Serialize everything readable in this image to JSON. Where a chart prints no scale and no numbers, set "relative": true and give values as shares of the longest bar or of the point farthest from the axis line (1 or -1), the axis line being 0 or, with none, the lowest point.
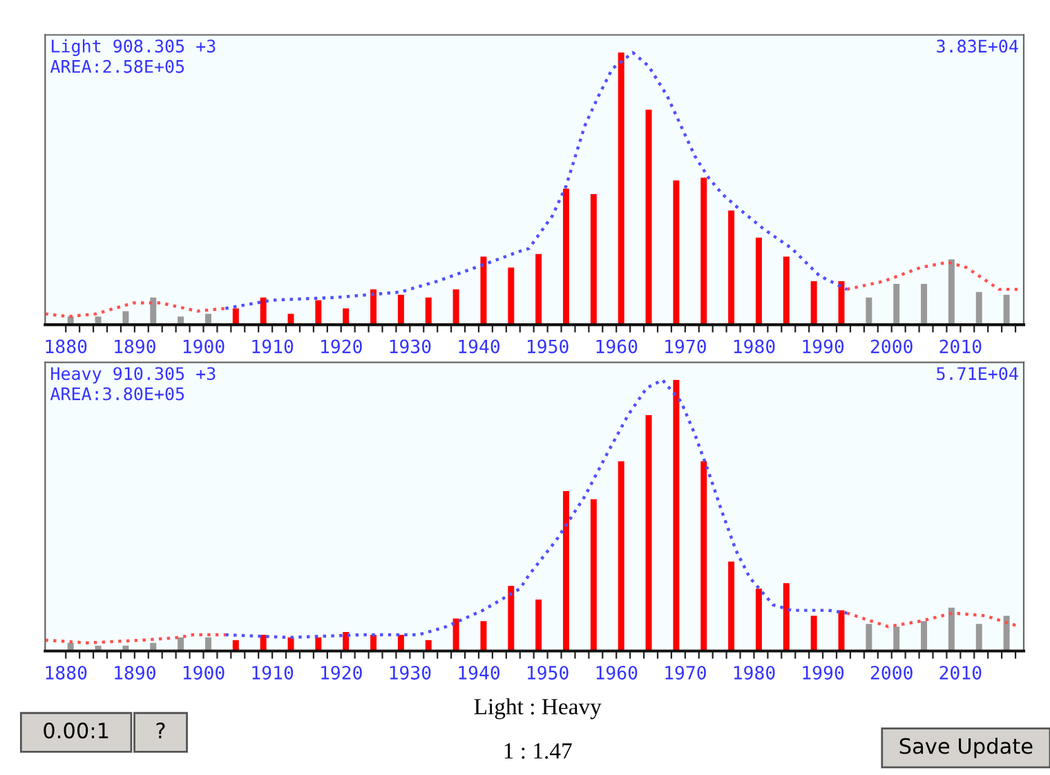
{
  "chart_data": [
    {
      "type": "bar",
      "relative": true,
      "annotations": [
        "Light 908.305 +3",
        "AREA:2.58E+05",
        "3.83E+04"
      ],
      "x": [
        1880.7,
        1884.7,
        1888.7,
        1892.7,
        1896.7,
        1900.7,
        1904.7,
        1908.7,
        1912.7,
        1916.7,
        1920.7,
        1924.7,
        1928.7,
        1932.7,
        1936.7,
        1940.7,
        1944.7,
        1948.7,
        1952.7,
        1956.7,
        1960.7,
        1964.7,
        1968.7,
        1972.7,
        1976.7,
        1980.7,
        1984.7,
        1988.7,
        1992.7,
        1996.7,
        2000.7,
        2004.7,
        2008.7,
        2012.7,
        2016.7
      ],
      "series": [
        {
          "type": "bar",
          "values": [
            0.03,
            0.03,
            0.05,
            0.1,
            0.03,
            0.04,
            0.06,
            0.1,
            0.04,
            0.09,
            0.06,
            0.13,
            0.11,
            0.1,
            0.13,
            0.25,
            0.21,
            0.26,
            0.5,
            0.48,
            1.0,
            0.79,
            0.53,
            0.54,
            0.42,
            0.32,
            0.25,
            0.16,
            0.16,
            0.1,
            0.15,
            0.15,
            0.24,
            0.12,
            0.11
          ],
          "colors": [
            "#999999",
            "#999999",
            "#999999",
            "#999999",
            "#999999",
            "#999999",
            "#ff0000",
            "#ff0000",
            "#ff0000",
            "#ff0000",
            "#ff0000",
            "#ff0000",
            "#ff0000",
            "#ff0000",
            "#ff0000",
            "#ff0000",
            "#ff0000",
            "#ff0000",
            "#ff0000",
            "#ff0000",
            "#ff0000",
            "#ff0000",
            "#ff0000",
            "#ff0000",
            "#ff0000",
            "#ff0000",
            "#ff0000",
            "#ff0000",
            "#ff0000",
            "#999999",
            "#999999",
            "#999999",
            "#999999",
            "#999999",
            "#999999"
          ]
        },
        {
          "type": "line",
          "color": "#ff5050",
          "x": [
            1877.0,
            1880.4,
            1884.4,
            1889.8,
            1893.8,
            1899.1,
            1903.2,
            null,
            1993.5,
            1998.9,
            2004.2,
            2008.2,
            2010.9,
            2015.6,
            2018.6
          ],
          "values": [
            0.04,
            0.03,
            0.04,
            0.08,
            0.08,
            0.05,
            0.06,
            null,
            0.13,
            0.16,
            0.21,
            0.23,
            0.21,
            0.13,
            0.13
          ]
        },
        {
          "type": "line",
          "color": "#5050ff",
          "x": [
            1903.2,
            1909.9,
            1919.2,
            1928.6,
            1934.0,
            1940.6,
            1946.0,
            1947.3,
            1950.7,
            1952.7,
            1955.4,
            1957.4,
            1959.4,
            1962.4,
            1964.7,
            1967.4,
            1969.4,
            1971.4,
            1973.4,
            1975.4,
            1978.1,
            1981.5,
            1985.5,
            1989.5,
            1993.5
          ],
          "values": [
            0.06,
            0.09,
            0.1,
            0.12,
            0.16,
            0.22,
            0.27,
            0.28,
            0.4,
            0.51,
            0.73,
            0.84,
            0.94,
            1.0,
            0.95,
            0.84,
            0.73,
            0.62,
            0.54,
            0.48,
            0.42,
            0.35,
            0.28,
            0.18,
            0.13
          ]
        }
      ],
      "line_style": "dotted",
      "marker": "none",
      "grid": false,
      "legend": false,
      "tick_labels": "x",
      "xlim": [
        1877,
        2019.2
      ],
      "xticks": [
        1880,
        {
          "value": 1882,
          "label": null
        },
        {
          "value": 1884,
          "label": null
        },
        {
          "value": 1886,
          "label": null
        },
        {
          "value": 1888,
          "label": null
        },
        1890,
        {
          "value": 1892,
          "label": null
        },
        {
          "value": 1894,
          "label": null
        },
        {
          "value": 1896,
          "label": null
        },
        {
          "value": 1898,
          "label": null
        },
        1900,
        {
          "value": 1902,
          "label": null
        },
        {
          "value": 1904,
          "label": null
        },
        {
          "value": 1906,
          "label": null
        },
        {
          "value": 1908,
          "label": null
        },
        1910,
        {
          "value": 1912,
          "label": null
        },
        {
          "value": 1914,
          "label": null
        },
        {
          "value": 1916,
          "label": null
        },
        {
          "value": 1918,
          "label": null
        },
        1920,
        {
          "value": 1922,
          "label": null
        },
        {
          "value": 1924,
          "label": null
        },
        {
          "value": 1926,
          "label": null
        },
        {
          "value": 1928,
          "label": null
        },
        1930,
        {
          "value": 1932,
          "label": null
        },
        {
          "value": 1934,
          "label": null
        },
        {
          "value": 1936,
          "label": null
        },
        {
          "value": 1938,
          "label": null
        },
        1940,
        {
          "value": 1942,
          "label": null
        },
        {
          "value": 1944,
          "label": null
        },
        {
          "value": 1946,
          "label": null
        },
        {
          "value": 1948,
          "label": null
        },
        1950,
        {
          "value": 1952,
          "label": null
        },
        {
          "value": 1954,
          "label": null
        },
        {
          "value": 1956,
          "label": null
        },
        {
          "value": 1958,
          "label": null
        },
        1960,
        {
          "value": 1962,
          "label": null
        },
        {
          "value": 1964,
          "label": null
        },
        {
          "value": 1966,
          "label": null
        },
        {
          "value": 1968,
          "label": null
        },
        1970,
        {
          "value": 1972,
          "label": null
        },
        {
          "value": 1974,
          "label": null
        },
        {
          "value": 1976,
          "label": null
        },
        {
          "value": 1978,
          "label": null
        },
        1980,
        {
          "value": 1982,
          "label": null
        },
        {
          "value": 1984,
          "label": null
        },
        {
          "value": 1986,
          "label": null
        },
        {
          "value": 1988,
          "label": null
        },
        1990,
        {
          "value": 1992,
          "label": null
        },
        {
          "value": 1994,
          "label": null
        },
        {
          "value": 1996,
          "label": null
        },
        {
          "value": 1998,
          "label": null
        },
        2000,
        {
          "value": 2002,
          "label": null
        },
        {
          "value": 2004,
          "label": null
        },
        {
          "value": 2006,
          "label": null
        },
        {
          "value": 2008,
          "label": null
        },
        2010,
        {
          "value": 2012,
          "label": null
        },
        {
          "value": 2014,
          "label": null
        },
        {
          "value": 2016,
          "label": null
        },
        {
          "value": 2018,
          "label": null
        }
      ]
    },
    {
      "type": "bar",
      "relative": true,
      "annotations": [
        "Heavy 910.305 +3",
        "AREA:3.80E+05",
        "5.71E+04"
      ],
      "x": [
        1880.7,
        1884.7,
        1888.7,
        1892.7,
        1896.7,
        1900.7,
        1904.7,
        1908.7,
        1912.7,
        1916.7,
        1920.7,
        1924.7,
        1928.7,
        1932.7,
        1936.7,
        1940.7,
        1944.7,
        1948.7,
        1952.7,
        1956.7,
        1960.7,
        1964.7,
        1968.7,
        1972.7,
        1976.7,
        1980.7,
        1984.7,
        1988.7,
        1992.7,
        1996.7,
        2000.7,
        2004.7,
        2008.7,
        2012.7,
        2016.7
      ],
      "series": [
        {
          "type": "bar",
          "values": [
            0.03,
            0.02,
            0.02,
            0.03,
            0.05,
            0.05,
            0.04,
            0.06,
            0.05,
            0.05,
            0.07,
            0.06,
            0.06,
            0.04,
            0.12,
            0.11,
            0.24,
            0.19,
            0.59,
            0.56,
            0.7,
            0.87,
            1.0,
            0.7,
            0.33,
            0.23,
            0.25,
            0.13,
            0.15,
            0.1,
            0.09,
            0.11,
            0.16,
            0.1,
            0.13
          ],
          "colors": [
            "#999999",
            "#999999",
            "#999999",
            "#999999",
            "#999999",
            "#999999",
            "#ff0000",
            "#ff0000",
            "#ff0000",
            "#ff0000",
            "#ff0000",
            "#ff0000",
            "#ff0000",
            "#ff0000",
            "#ff0000",
            "#ff0000",
            "#ff0000",
            "#ff0000",
            "#ff0000",
            "#ff0000",
            "#ff0000",
            "#ff0000",
            "#ff0000",
            "#ff0000",
            "#ff0000",
            "#ff0000",
            "#ff0000",
            "#ff0000",
            "#ff0000",
            "#999999",
            "#999999",
            "#999999",
            "#999999",
            "#999999",
            "#999999"
          ]
        },
        {
          "type": "line",
          "color": "#ff5050",
          "x": [
            1877.0,
            1883.1,
            1891.1,
            1896.5,
            1898.5,
            1903.2,
            null,
            1993.5,
            1999.5,
            2004.2,
            2008.9,
            2013.6,
            2018.6
          ],
          "values": [
            0.04,
            0.03,
            0.04,
            0.05,
            0.06,
            0.06,
            null,
            0.14,
            0.09,
            0.11,
            0.14,
            0.13,
            0.09
          ]
        },
        {
          "type": "line",
          "color": "#5050ff",
          "x": [
            1903.2,
            1912.5,
            1923.2,
            1931.3,
            1935.3,
            1940.6,
            1946.0,
            1947.3,
            1951.3,
            1955.4,
            1958.7,
            1961.7,
            1964.4,
            1966.7,
            1969.4,
            1971.4,
            1973.4,
            1975.4,
            1977.4,
            1979.4,
            1982.8,
            1985.5,
            1990.8,
            1993.5
          ],
          "values": [
            0.06,
            0.05,
            0.06,
            0.06,
            0.09,
            0.15,
            0.23,
            0.28,
            0.41,
            0.57,
            0.73,
            0.87,
            0.97,
            1.0,
            0.92,
            0.8,
            0.66,
            0.51,
            0.37,
            0.27,
            0.17,
            0.15,
            0.15,
            0.14
          ]
        }
      ],
      "line_style": "dotted",
      "marker": "none",
      "grid": false,
      "legend": false,
      "tick_labels": "x",
      "xlim": [
        1877,
        2019.2
      ],
      "xticks": [
        1880,
        {
          "value": 1882,
          "label": null
        },
        {
          "value": 1884,
          "label": null
        },
        {
          "value": 1886,
          "label": null
        },
        {
          "value": 1888,
          "label": null
        },
        1890,
        {
          "value": 1892,
          "label": null
        },
        {
          "value": 1894,
          "label": null
        },
        {
          "value": 1896,
          "label": null
        },
        {
          "value": 1898,
          "label": null
        },
        1900,
        {
          "value": 1902,
          "label": null
        },
        {
          "value": 1904,
          "label": null
        },
        {
          "value": 1906,
          "label": null
        },
        {
          "value": 1908,
          "label": null
        },
        1910,
        {
          "value": 1912,
          "label": null
        },
        {
          "value": 1914,
          "label": null
        },
        {
          "value": 1916,
          "label": null
        },
        {
          "value": 1918,
          "label": null
        },
        1920,
        {
          "value": 1922,
          "label": null
        },
        {
          "value": 1924,
          "label": null
        },
        {
          "value": 1926,
          "label": null
        },
        {
          "value": 1928,
          "label": null
        },
        1930,
        {
          "value": 1932,
          "label": null
        },
        {
          "value": 1934,
          "label": null
        },
        {
          "value": 1936,
          "label": null
        },
        {
          "value": 1938,
          "label": null
        },
        1940,
        {
          "value": 1942,
          "label": null
        },
        {
          "value": 1944,
          "label": null
        },
        {
          "value": 1946,
          "label": null
        },
        {
          "value": 1948,
          "label": null
        },
        1950,
        {
          "value": 1952,
          "label": null
        },
        {
          "value": 1954,
          "label": null
        },
        {
          "value": 1956,
          "label": null
        },
        {
          "value": 1958,
          "label": null
        },
        1960,
        {
          "value": 1962,
          "label": null
        },
        {
          "value": 1964,
          "label": null
        },
        {
          "value": 1966,
          "label": null
        },
        {
          "value": 1968,
          "label": null
        },
        1970,
        {
          "value": 1972,
          "label": null
        },
        {
          "value": 1974,
          "label": null
        },
        {
          "value": 1976,
          "label": null
        },
        {
          "value": 1978,
          "label": null
        },
        1980,
        {
          "value": 1982,
          "label": null
        },
        {
          "value": 1984,
          "label": null
        },
        {
          "value": 1986,
          "label": null
        },
        {
          "value": 1988,
          "label": null
        },
        1990,
        {
          "value": 1992,
          "label": null
        },
        {
          "value": 1994,
          "label": null
        },
        {
          "value": 1996,
          "label": null
        },
        {
          "value": 1998,
          "label": null
        },
        2000,
        {
          "value": 2002,
          "label": null
        },
        {
          "value": 2004,
          "label": null
        },
        {
          "value": 2006,
          "label": null
        },
        {
          "value": 2008,
          "label": null
        },
        2010,
        {
          "value": 2012,
          "label": null
        },
        {
          "value": 2014,
          "label": null
        },
        {
          "value": 2016,
          "label": null
        },
        {
          "value": 2018,
          "label": null
        }
      ]
    },
    {
      "type": "other",
      "annotations": [
        "0.00:1",
        "?",
        "Light : Heavy",
        "1 : 1.47",
        "Save Update"
      ]
    }
  ]
}
